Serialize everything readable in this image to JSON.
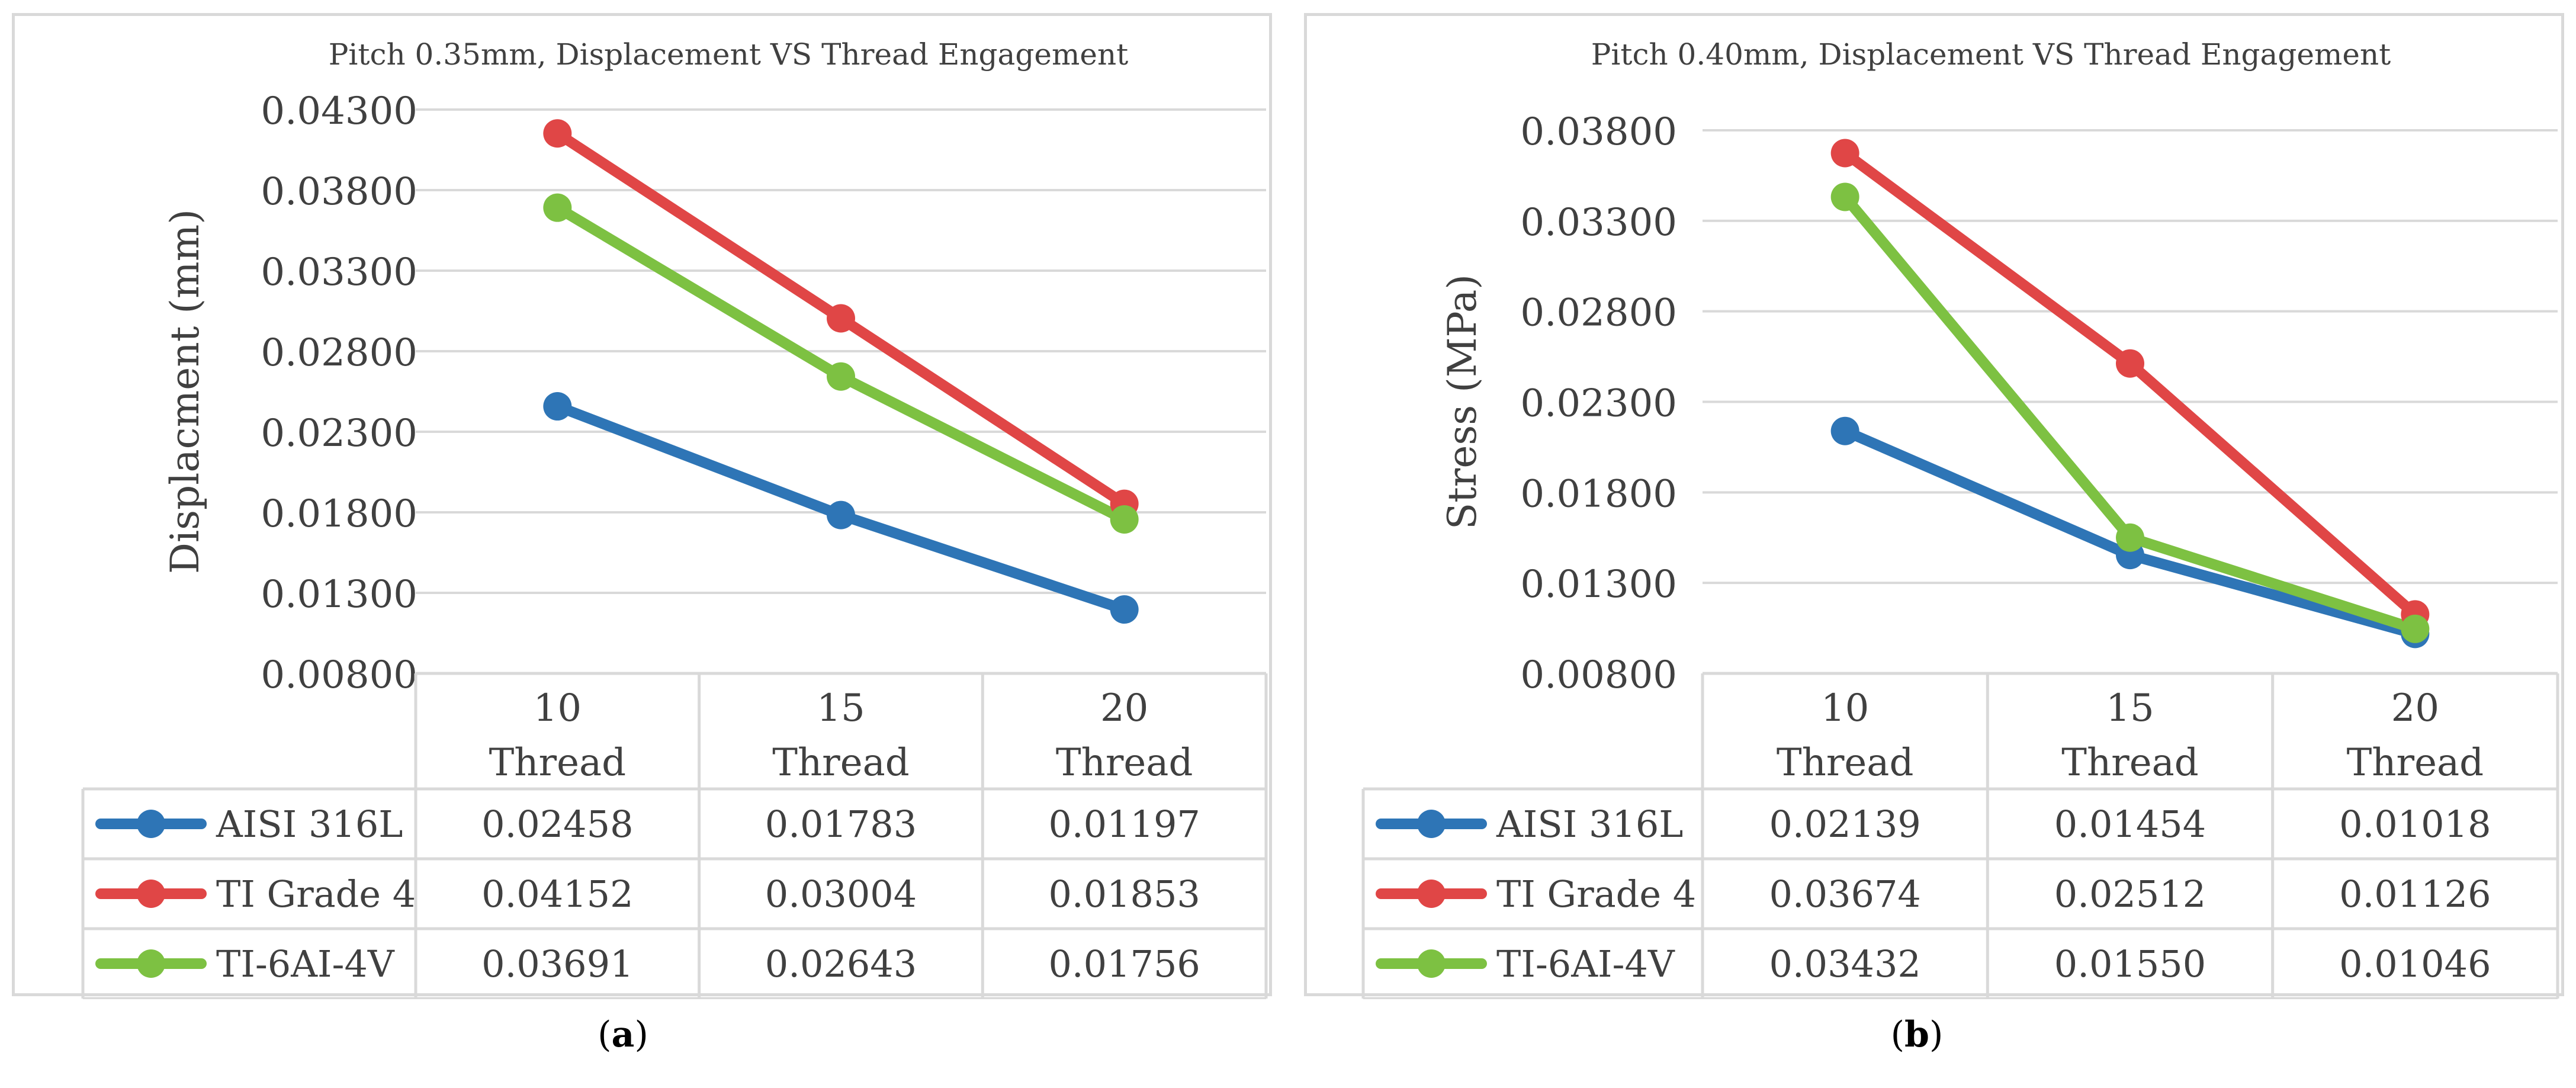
{
  "chart_data": [
    {
      "type": "line",
      "title": "Pitch 0.35mm, Displacement VS Thread Engagement",
      "xlabel": "",
      "ylabel": "Displacment (mm)",
      "ylim": [
        0.008,
        0.043
      ],
      "yticks": [
        "0.00800",
        "0.01300",
        "0.01800",
        "0.02300",
        "0.02800",
        "0.03300",
        "0.03800",
        "0.04300"
      ],
      "categories": [
        [
          "10",
          "Thread"
        ],
        [
          "15",
          "Thread"
        ],
        [
          "20",
          "Thread"
        ]
      ],
      "series": [
        {
          "name": "AISI 316L",
          "color": "#2E75B6",
          "values": [
            0.02458,
            0.01783,
            0.01197
          ],
          "labels": [
            "0.02458",
            "0.01783",
            "0.01197"
          ]
        },
        {
          "name": "TI Grade 4",
          "color": "#E04646",
          "values": [
            0.04152,
            0.03004,
            0.01853
          ],
          "labels": [
            "0.04152",
            "0.03004",
            "0.01853"
          ]
        },
        {
          "name": "TI-6AI-4V",
          "color": "#7DC142",
          "values": [
            0.03691,
            0.02643,
            0.01756
          ],
          "labels": [
            "0.03691",
            "0.02643",
            "0.01756"
          ]
        }
      ],
      "legend": "data-table",
      "grid": true
    },
    {
      "type": "line",
      "title": "Pitch 0.40mm, Displacement VS Thread Engagement",
      "xlabel": "",
      "ylabel": "Stress (MPa)",
      "ylim": [
        0.008,
        0.038
      ],
      "yticks": [
        "0.00800",
        "0.01300",
        "0.01800",
        "0.02300",
        "0.02800",
        "0.03300",
        "0.03800"
      ],
      "categories": [
        [
          "10",
          "Thread"
        ],
        [
          "15",
          "Thread"
        ],
        [
          "20",
          "Thread"
        ]
      ],
      "series": [
        {
          "name": "AISI 316L",
          "color": "#2E75B6",
          "values": [
            0.02139,
            0.01454,
            0.01018
          ],
          "labels": [
            "0.02139",
            "0.01454",
            "0.01018"
          ]
        },
        {
          "name": "TI Grade 4",
          "color": "#E04646",
          "values": [
            0.03674,
            0.02512,
            0.01126
          ],
          "labels": [
            "0.03674",
            "0.02512",
            "0.01126"
          ]
        },
        {
          "name": "TI-6AI-4V",
          "color": "#7DC142",
          "values": [
            0.03432,
            0.0155,
            0.01046
          ],
          "labels": [
            "0.03432",
            "0.01550",
            "0.01046"
          ]
        }
      ],
      "legend": "data-table",
      "grid": true
    }
  ],
  "panel_labels": [
    "a",
    "b"
  ]
}
